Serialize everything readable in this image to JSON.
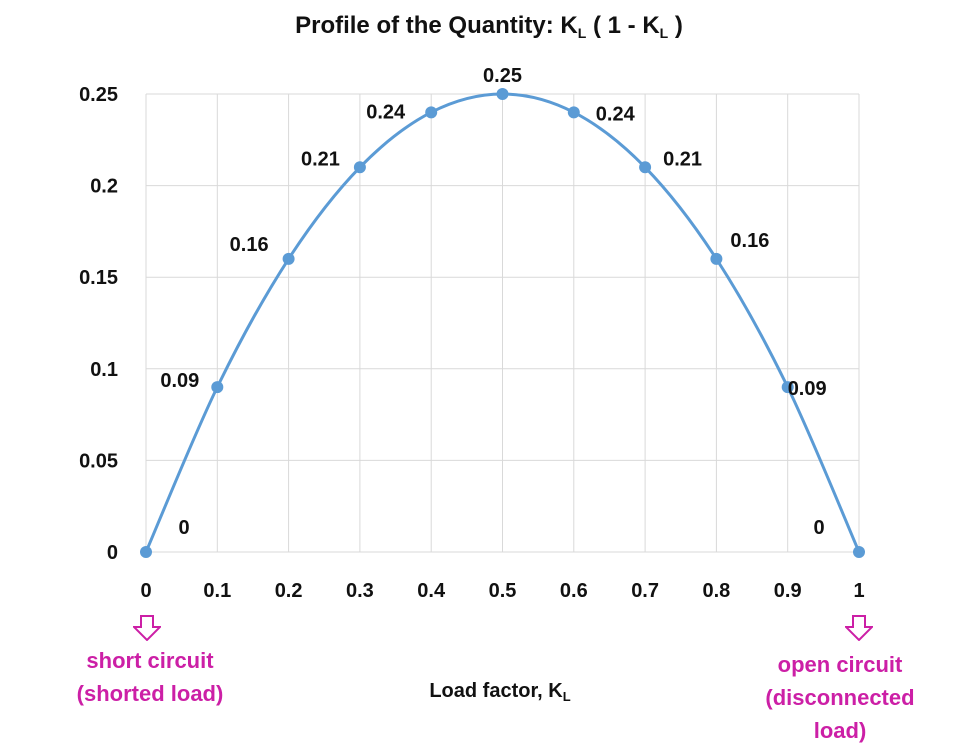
{
  "title": {
    "main": "Profile of the Quantity: K",
    "sub1": "L",
    "mid": " ( 1 - K",
    "sub2": "L",
    "end": " )"
  },
  "xaxis": {
    "label_main": "Load factor, K",
    "label_sub": "L"
  },
  "annotations": {
    "left": [
      "short circuit",
      "(shorted load)"
    ],
    "right": [
      "open circuit",
      "(disconnected",
      "load)"
    ],
    "color": "#cc1fa6",
    "arrow_icon": "down-arrow-outline-icon"
  },
  "chart_data": {
    "type": "line",
    "title": "Profile of the Quantity: KL ( 1 - KL )",
    "xlabel": "Load factor, KL",
    "ylabel": "",
    "x": [
      0,
      0.1,
      0.2,
      0.3,
      0.4,
      0.5,
      0.6,
      0.7,
      0.8,
      0.9,
      1
    ],
    "x_tick_labels": [
      "0",
      "0.1",
      "0.2",
      "0.3",
      "0.4",
      "0.5",
      "0.6",
      "0.7",
      "0.8",
      "0.9",
      "1"
    ],
    "y_ticks": [
      0,
      0.05,
      0.1,
      0.15,
      0.2,
      0.25
    ],
    "y_tick_labels": [
      "0",
      "0.05",
      "0.1",
      "0.15",
      "0.2",
      "0.25"
    ],
    "series": [
      {
        "values": [
          0,
          0.09,
          0.16,
          0.21,
          0.24,
          0.25,
          0.24,
          0.21,
          0.16,
          0.09,
          0
        ],
        "data_labels": [
          "0",
          "0.09",
          "0.16",
          "0.21",
          "0.24",
          "0.25",
          "0.24",
          "0.21",
          "0.16",
          "0.09",
          "0"
        ],
        "color": "#5b9bd5"
      }
    ],
    "xlim": [
      0,
      1
    ],
    "ylim": [
      0,
      0.25
    ],
    "grid": true,
    "smooth": true
  }
}
